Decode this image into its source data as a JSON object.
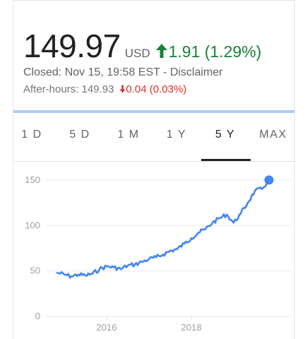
{
  "quote": {
    "price": "149.97",
    "currency": "USD",
    "change": "1.91 (1.29%)",
    "closed_text": "Closed: Nov 15, 19:58 EST - Disclaimer",
    "after_hours_label": "After-hours: 149.93",
    "after_hours_change": "0.04 (0.03%)"
  },
  "colors": {
    "up": "#188038",
    "down": "#d93025",
    "line": "#4285f4",
    "accent_rule": "#aecbfa"
  },
  "icons": {
    "change_up": "arrow-up-icon",
    "change_down": "arrow-down-icon"
  },
  "tabs": [
    {
      "label": "1 D",
      "active": false
    },
    {
      "label": "5 D",
      "active": false
    },
    {
      "label": "1 M",
      "active": false
    },
    {
      "label": "1 Y",
      "active": false
    },
    {
      "label": "5 Y",
      "active": true
    },
    {
      "label": "MAX",
      "active": false
    }
  ],
  "chart_data": {
    "type": "line",
    "title": "",
    "xlabel": "",
    "ylabel": "",
    "ylim": [
      0,
      160
    ],
    "yticks": [
      0,
      50,
      100,
      150
    ],
    "xticks": [
      "2016",
      "2018"
    ],
    "xlim": [
      "2014-11",
      "2019-11"
    ],
    "grid": true,
    "series": [
      {
        "x": [
          "2014-11",
          "2015-01",
          "2015-03",
          "2015-05",
          "2015-07",
          "2015-09",
          "2015-11",
          "2016-01",
          "2016-03",
          "2016-05",
          "2016-07",
          "2016-09",
          "2016-11",
          "2017-01",
          "2017-03",
          "2017-05",
          "2017-07",
          "2017-09",
          "2017-11",
          "2018-01",
          "2018-03",
          "2018-05",
          "2018-07",
          "2018-09",
          "2018-11",
          "2019-01",
          "2019-03",
          "2019-05",
          "2019-07",
          "2019-09",
          "2019-11"
        ],
        "y": [
          48,
          46,
          44,
          46,
          45,
          47,
          52,
          55,
          54,
          52,
          56,
          57,
          60,
          63,
          65,
          68,
          72,
          74,
          80,
          86,
          92,
          96,
          103,
          108,
          112,
          103,
          113,
          125,
          138,
          140,
          149.97
        ]
      }
    ]
  }
}
